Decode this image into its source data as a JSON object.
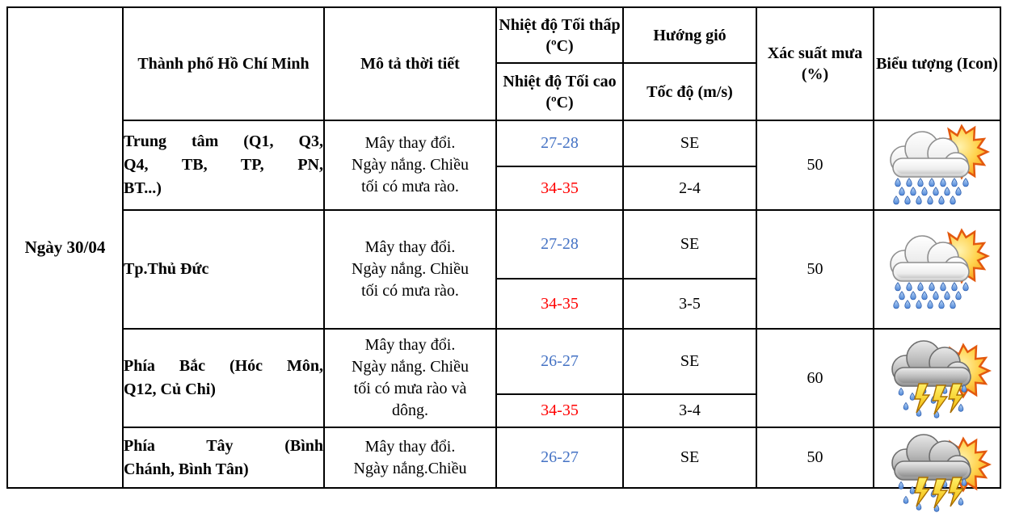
{
  "table": {
    "date_label": "Ngày 30/04",
    "headers": {
      "city": "Thành phố Hồ Chí Minh",
      "description": "Mô tả thời tiết",
      "temp_min": "Nhiệt độ Tối thấp (ºC)",
      "temp_max": "Nhiệt độ Tối cao (ºC)",
      "wind_direction": "Hướng gió",
      "wind_speed": "Tốc độ (m/s)",
      "rain_probability": "Xác suất mưa (%)",
      "icon": "Biểu tượng (Icon)"
    },
    "colors": {
      "temp_min_text": "#4472C4",
      "temp_max_text": "#FF0000",
      "border": "#000000",
      "background": "#FFFFFF"
    },
    "rows": [
      {
        "city": "Trung tâm (Q1, Q3,\nQ4, TB, TP, PN,\nBT...)",
        "description": "Mây thay đổi.\nNgày nắng. Chiều\ntối có mưa rào.",
        "temp_min": "27-28",
        "temp_max": "34-35",
        "wind_direction": "SE",
        "wind_speed": "2-4",
        "rain_probability": "50",
        "icon": "sun-cloud-rain-icon"
      },
      {
        "city": "Tp.Thủ Đức",
        "description": "Mây thay đổi.\nNgày nắng. Chiều\ntối có mưa rào.",
        "temp_min": "27-28",
        "temp_max": "34-35",
        "wind_direction": "SE",
        "wind_speed": "3-5",
        "rain_probability": "50",
        "icon": "sun-cloud-rain-icon"
      },
      {
        "city": "Phía Bắc (Hóc Môn,\nQ12, Củ Chi)",
        "description": "Mây thay đổi.\nNgày nắng. Chiều\ntối có mưa rào và\ndông.",
        "temp_min": "26-27",
        "temp_max": "34-35",
        "wind_direction": "SE",
        "wind_speed": "3-4",
        "rain_probability": "60",
        "icon": "sun-cloud-thunderstorm-icon"
      },
      {
        "city": "Phía Tây (Bình\nChánh, Bình Tân)",
        "description": "Mây thay đổi.\nNgày nắng.Chiều",
        "temp_min": "26-27",
        "temp_max": "",
        "wind_direction": "SE",
        "wind_speed": "",
        "rain_probability": "50",
        "icon": "sun-cloud-thunderstorm-icon"
      }
    ]
  }
}
